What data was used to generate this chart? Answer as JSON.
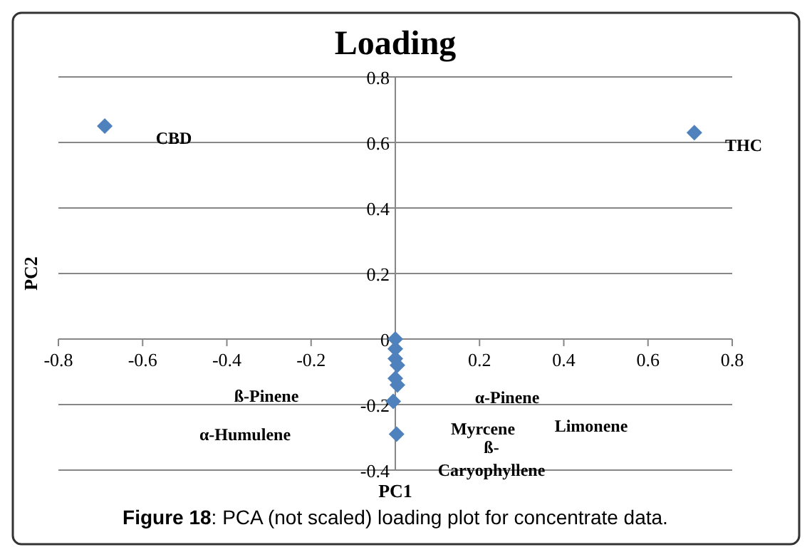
{
  "chart_data": {
    "type": "scatter",
    "title": "Loading",
    "xlabel": "PC1",
    "ylabel": "PC2",
    "series": [
      {
        "color": "#4f81bd",
        "x": [
          -0.69,
          0.71,
          0,
          0,
          0,
          0.005,
          0,
          0.005,
          -0.005,
          0.003
        ],
        "values": [
          0.65,
          0.63,
          0,
          -0.03,
          -0.06,
          -0.08,
          -0.12,
          -0.14,
          -0.19,
          -0.29
        ]
      }
    ],
    "xlim": [
      -0.8,
      0.8
    ],
    "xticks": [
      -0.8,
      -0.6,
      -0.4,
      -0.2,
      0,
      0.2,
      0.4,
      0.6,
      0.8
    ],
    "ylim": [
      -0.4,
      0.8
    ],
    "yticks": [
      -0.4,
      -0.2,
      0,
      0.2,
      0.4,
      0.6,
      0.8
    ],
    "grid": "y",
    "marker": "diamond",
    "annotations": [
      "CBD",
      "THC",
      "ß-Pinene",
      "α-Humulene",
      "α-Pinene",
      "Myrcene",
      "ß-Caryophyllene",
      "Limonene",
      "Figure 18: PCA (not scaled) loading plot for concentrate data."
    ]
  }
}
